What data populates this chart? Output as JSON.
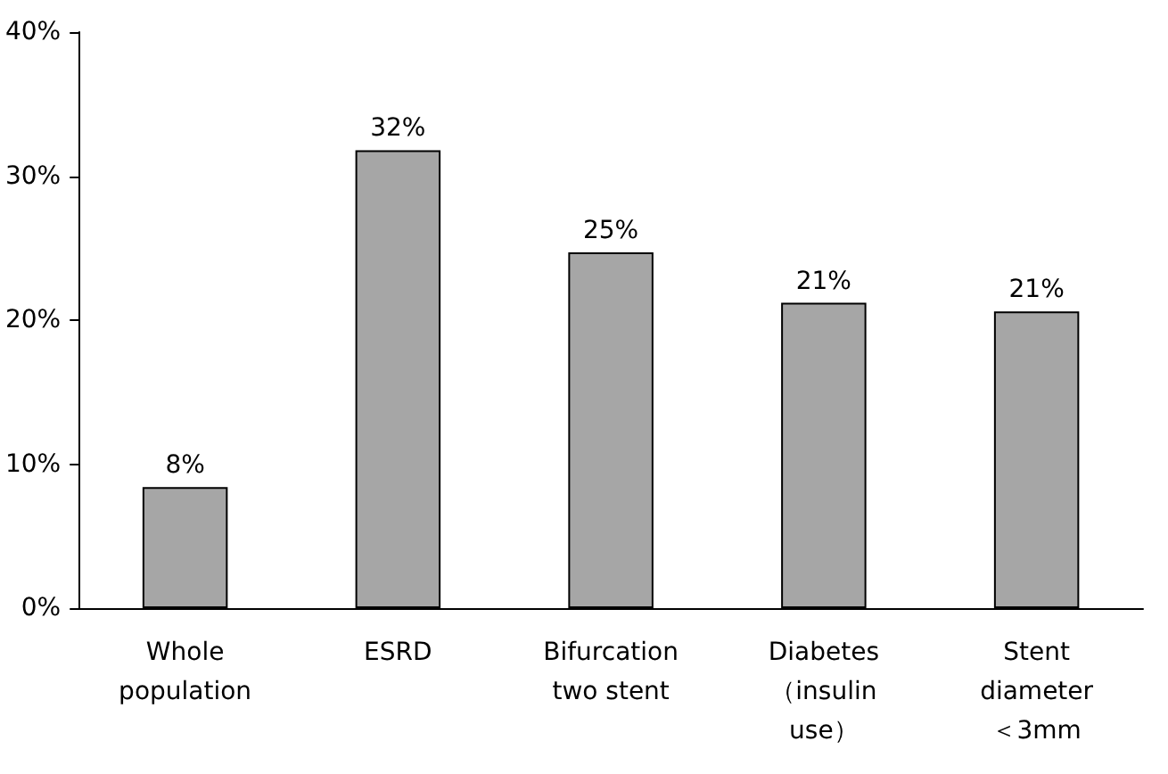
{
  "chart_data": {
    "type": "bar",
    "categories": [
      "Whole population",
      "ESRD",
      "Bifurcation two stent",
      "Diabetes （insulin use）",
      "Stent diameter ＜3mm"
    ],
    "values": [
      8.4,
      31.8,
      24.7,
      21.2,
      20.6
    ],
    "value_labels": [
      "8%",
      "32%",
      "25%",
      "21%",
      "21%"
    ],
    "color": "#a6a6a6",
    "ylim": [
      0,
      40
    ],
    "yticks": [
      {
        "value": 0,
        "label": "0%"
      },
      {
        "value": 10,
        "label": "10%"
      },
      {
        "value": 20,
        "label": "20%"
      },
      {
        "value": 30,
        "label": "30%"
      },
      {
        "value": 40,
        "label": "40%"
      }
    ],
    "grid": false
  }
}
